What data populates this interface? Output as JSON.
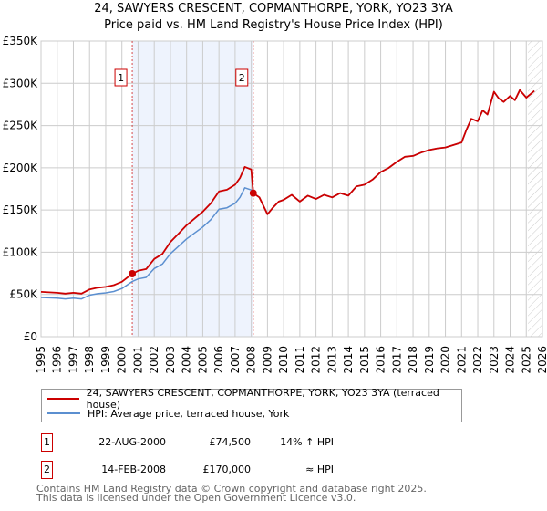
{
  "title_line1": "24, SAWYERS CRESCENT, COPMANTHORPE, YORK, YO23 3YA",
  "title_line2": "Price paid vs. HM Land Registry's House Price Index (HPI)",
  "colors": {
    "property": "#cc0000",
    "hpi": "#5b8fd0",
    "shade": "#eef3fd",
    "grid": "#cccccc"
  },
  "chart_data": {
    "type": "line",
    "title": "24, SAWYERS CRESCENT, COPMANTHORPE, YORK, YO23 3YA — Price paid vs. HM Land Registry's House Price Index (HPI)",
    "xlim": [
      1995,
      2026
    ],
    "ylim": [
      0,
      350000
    ],
    "x_ticks": [
      "1995",
      "1996",
      "1997",
      "1998",
      "1999",
      "2000",
      "2001",
      "2002",
      "2003",
      "2004",
      "2005",
      "2006",
      "2007",
      "2008",
      "2009",
      "2010",
      "2011",
      "2012",
      "2013",
      "2014",
      "2015",
      "2016",
      "2017",
      "2018",
      "2019",
      "2020",
      "2021",
      "2022",
      "2023",
      "2024",
      "2025",
      "2026"
    ],
    "y_ticks": [
      {
        "v": 0,
        "label": "£0"
      },
      {
        "v": 50000,
        "label": "£50K"
      },
      {
        "v": 100000,
        "label": "£100K"
      },
      {
        "v": 150000,
        "label": "£150K"
      },
      {
        "v": 200000,
        "label": "£200K"
      },
      {
        "v": 250000,
        "label": "£250K"
      },
      {
        "v": 300000,
        "label": "£300K"
      },
      {
        "v": 350000,
        "label": "£350K"
      }
    ],
    "grid": true,
    "shaded_range": [
      2000.64,
      2008.12
    ],
    "hatched_from": 2025.1,
    "series": [
      {
        "name": "24, SAWYERS CRESCENT, COPMANTHORPE, YORK, YO23 3YA (terraced house)",
        "x": [
          1995,
          1995.5,
          1996,
          1996.5,
          1997,
          1997.5,
          1998,
          1998.5,
          1999,
          1999.5,
          2000,
          2000.64,
          2001,
          2001.5,
          2002,
          2002.5,
          2003,
          2003.5,
          2004,
          2004.5,
          2005,
          2005.5,
          2006,
          2006.5,
          2007,
          2007.3,
          2007.6,
          2008,
          2008.12,
          2008.5,
          2009,
          2009.3,
          2009.7,
          2010,
          2010.5,
          2011,
          2011.5,
          2012,
          2012.5,
          2013,
          2013.5,
          2014,
          2014.5,
          2015,
          2015.5,
          2016,
          2016.5,
          2017,
          2017.5,
          2018,
          2018.5,
          2019,
          2019.5,
          2020,
          2020.5,
          2021,
          2021.3,
          2021.6,
          2022,
          2022.3,
          2022.6,
          2023,
          2023.3,
          2023.6,
          2024,
          2024.3,
          2024.6,
          2025,
          2025.5
        ],
        "y": [
          53000,
          52500,
          52000,
          51000,
          52000,
          51000,
          56000,
          58000,
          59000,
          61000,
          65000,
          74500,
          78000,
          80000,
          92000,
          98000,
          112000,
          122000,
          132000,
          140000,
          148000,
          158000,
          172000,
          174000,
          180000,
          188000,
          201000,
          198000,
          170000,
          165000,
          145000,
          152000,
          160000,
          162000,
          168000,
          160000,
          167000,
          163000,
          168000,
          165000,
          170000,
          167000,
          178000,
          180000,
          186000,
          195000,
          200000,
          207000,
          213000,
          214000,
          218000,
          221000,
          223000,
          224000,
          227000,
          230000,
          245000,
          258000,
          255000,
          268000,
          263000,
          290000,
          282000,
          278000,
          285000,
          280000,
          292000,
          283000,
          291000
        ]
      },
      {
        "name": "HPI: Average price, terraced house, York",
        "x": [
          1995,
          1995.5,
          1996,
          1996.5,
          1997,
          1997.5,
          1998,
          1998.5,
          1999,
          1999.5,
          2000,
          2000.64,
          2001,
          2001.5,
          2002,
          2002.5,
          2003,
          2003.5,
          2004,
          2004.5,
          2005,
          2005.5,
          2006,
          2006.5,
          2007,
          2007.3,
          2007.6,
          2008,
          2008.12,
          2008.5,
          2009,
          2009.3,
          2009.7,
          2010,
          2010.5,
          2011,
          2011.5,
          2012,
          2012.5,
          2013,
          2013.5,
          2014,
          2014.5,
          2015,
          2015.5,
          2016,
          2016.5,
          2017,
          2017.5,
          2018,
          2018.5,
          2019,
          2019.5,
          2020,
          2020.5,
          2021,
          2021.3,
          2021.6,
          2022,
          2022.3,
          2022.6,
          2023,
          2023.3,
          2023.6,
          2024,
          2024.3,
          2024.6,
          2025,
          2025.5
        ],
        "y": [
          46500,
          46000,
          45600,
          44700,
          45600,
          44700,
          49100,
          50900,
          51800,
          53500,
          57000,
          65400,
          68400,
          70200,
          80700,
          86000,
          98200,
          107000,
          115800,
          122800,
          129800,
          138600,
          150900,
          152600,
          157900,
          164900,
          176300,
          173700,
          170000,
          165000,
          145000,
          152000,
          160000,
          162000,
          168000,
          160000,
          167000,
          163000,
          168000,
          165000,
          170000,
          167000,
          178000,
          180000,
          186000,
          195000,
          200000,
          207000,
          213000,
          214000,
          218000,
          221000,
          223000,
          224000,
          227000,
          230000,
          245000,
          258000,
          255000,
          268000,
          263000,
          290000,
          282000,
          278000,
          285000,
          280000,
          292000,
          283000,
          291000
        ]
      }
    ],
    "annotations": [
      {
        "label": "1",
        "x": 2000.64,
        "y": 74500
      },
      {
        "label": "2",
        "x": 2008.12,
        "y": 170000
      }
    ]
  },
  "legend": {
    "property": "24, SAWYERS CRESCENT, COPMANTHORPE, YORK, YO23 3YA (terraced house)",
    "hpi": "HPI: Average price, terraced house, York"
  },
  "sales": [
    {
      "num": "1",
      "date": "22-AUG-2000",
      "price": "£74,500",
      "hpi": "14% ↑ HPI"
    },
    {
      "num": "2",
      "date": "14-FEB-2008",
      "price": "£170,000",
      "hpi": "≈ HPI"
    }
  ],
  "footer": {
    "line1": "Contains HM Land Registry data © Crown copyright and database right 2025.",
    "line2": "This data is licensed under the Open Government Licence v3.0."
  }
}
